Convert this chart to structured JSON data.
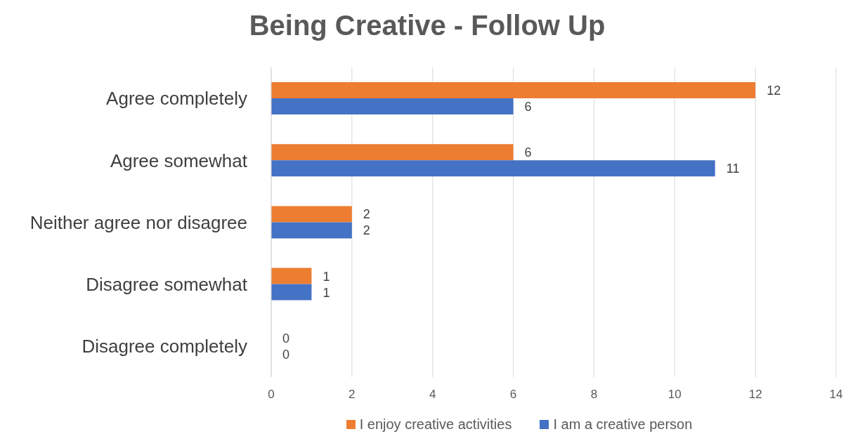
{
  "chart_data": {
    "type": "bar",
    "orientation": "horizontal",
    "title": "Being Creative - Follow Up",
    "categories": [
      "Agree completely",
      "Agree somewhat",
      "Neither agree nor disagree",
      "Disagree somewhat",
      "Disagree completely"
    ],
    "series": [
      {
        "name": "I enjoy creative activities",
        "color": "#ed7d31",
        "values": [
          12,
          6,
          2,
          1,
          0
        ]
      },
      {
        "name": "I am a creative person",
        "color": "#4472c4",
        "values": [
          6,
          11,
          2,
          1,
          0
        ]
      }
    ],
    "xlim": [
      0,
      14
    ],
    "xticks": [
      0,
      2,
      4,
      6,
      8,
      10,
      12,
      14
    ],
    "grid": "x",
    "legend": "bottom",
    "data_labels": true
  }
}
